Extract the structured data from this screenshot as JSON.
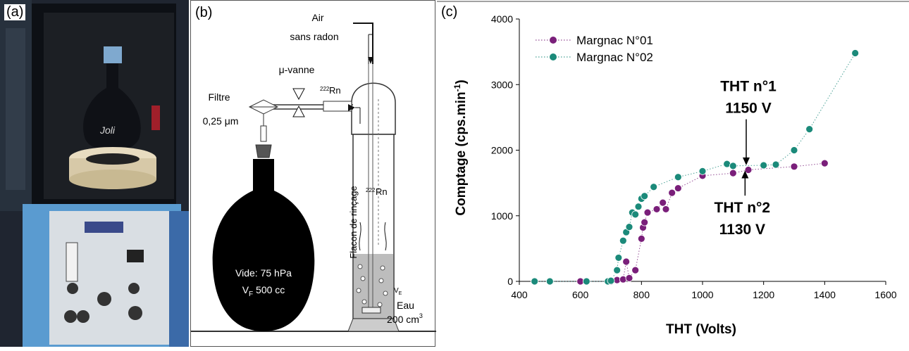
{
  "panels": {
    "a": {
      "label": "(a)"
    },
    "b": {
      "label": "(b)",
      "air_line1": "Air",
      "air_line2": "sans radon",
      "vanne": "μ-vanne",
      "rn_pipe_sup": "222",
      "rn_pipe": "Rn",
      "filtre_line1": "Filtre",
      "filtre_line2": "0,25 μm",
      "flacon": "Flacon de rinçage",
      "rn_flask_sup": "222",
      "rn_flask": "Rn",
      "vide_line1": "Vide: 75 hPa",
      "vide_line2_main": "V",
      "vide_line2_sub": "F",
      "vide_line2_rest": " 500 cc",
      "ve_main": "V",
      "ve_sub": "E",
      "eau_line1": "Eau",
      "eau_line2": "200 cm",
      "eau_sup": "3"
    },
    "c": {
      "label": "(c)"
    }
  },
  "chart_data": {
    "type": "scatter",
    "xlabel": "THT (Volts)",
    "ylabel": "Comptage (cps.min-1)",
    "xlim": [
      400,
      1600
    ],
    "ylim": [
      0,
      4000
    ],
    "xticks": [
      400,
      600,
      800,
      1000,
      1200,
      1400,
      1600
    ],
    "yticks": [
      0,
      1000,
      2000,
      3000,
      4000
    ],
    "grid": false,
    "legend_position": "top-left",
    "series": [
      {
        "name": "Margnac N°01",
        "color": "#7a1f7a",
        "points": [
          [
            450,
            0
          ],
          [
            500,
            0
          ],
          [
            600,
            0
          ],
          [
            700,
            0
          ],
          [
            720,
            20
          ],
          [
            740,
            30
          ],
          [
            750,
            300
          ],
          [
            760,
            50
          ],
          [
            780,
            170
          ],
          [
            800,
            650
          ],
          [
            805,
            820
          ],
          [
            810,
            900
          ],
          [
            820,
            1050
          ],
          [
            850,
            1100
          ],
          [
            870,
            1200
          ],
          [
            880,
            1100
          ],
          [
            900,
            1350
          ],
          [
            920,
            1420
          ],
          [
            1000,
            1610
          ],
          [
            1100,
            1650
          ],
          [
            1150,
            1700
          ],
          [
            1300,
            1750
          ],
          [
            1400,
            1800
          ]
        ]
      },
      {
        "name": "Margnac N°02",
        "color": "#1b8a7a",
        "points": [
          [
            450,
            0
          ],
          [
            500,
            0
          ],
          [
            620,
            0
          ],
          [
            690,
            0
          ],
          [
            700,
            10
          ],
          [
            720,
            170
          ],
          [
            725,
            360
          ],
          [
            740,
            620
          ],
          [
            750,
            750
          ],
          [
            760,
            830
          ],
          [
            770,
            1050
          ],
          [
            780,
            1020
          ],
          [
            790,
            1140
          ],
          [
            800,
            1260
          ],
          [
            810,
            1300
          ],
          [
            840,
            1440
          ],
          [
            920,
            1590
          ],
          [
            1000,
            1680
          ],
          [
            1080,
            1790
          ],
          [
            1100,
            1760
          ],
          [
            1200,
            1770
          ],
          [
            1240,
            1780
          ],
          [
            1300,
            2000
          ],
          [
            1350,
            2320
          ],
          [
            1500,
            3480
          ]
        ]
      }
    ],
    "annotations": [
      {
        "line1": "THT n°1",
        "line2": "1150 V",
        "x": 1150,
        "y": 1760,
        "text_x": 1150,
        "text_y": 2900
      },
      {
        "line1": "THT n°2",
        "line2": "1130 V",
        "x": 1130,
        "y": 1700,
        "text_x": 1130,
        "text_y": 1050
      }
    ]
  }
}
